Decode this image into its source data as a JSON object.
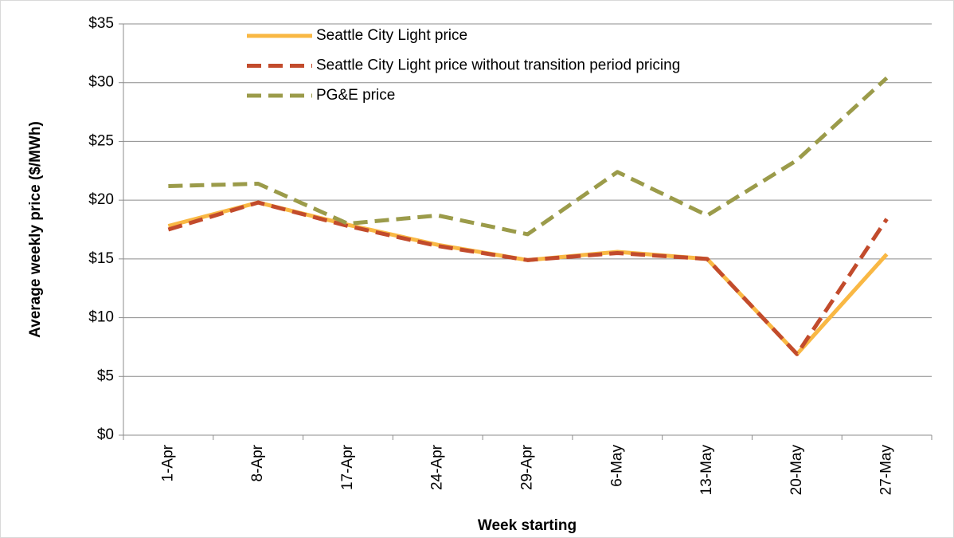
{
  "chart_data": {
    "type": "line",
    "x_label": "Week starting",
    "y_label": "Average weekly price ($/MWh)",
    "categories": [
      "1-Apr",
      "8-Apr",
      "17-Apr",
      "24-Apr",
      "29-Apr",
      "6-May",
      "13-May",
      "20-May",
      "27-May"
    ],
    "series": [
      {
        "name": "Seattle City Light price",
        "color": "#f9b844",
        "line_style": "solid",
        "values": [
          17.8,
          19.8,
          17.9,
          16.2,
          14.9,
          15.6,
          15.0,
          6.9,
          15.4
        ]
      },
      {
        "name": "Seattle City Light price without transition period pricing",
        "color": "#c24b2c",
        "line_style": "dashed",
        "values": [
          17.5,
          19.8,
          17.8,
          16.1,
          14.9,
          15.5,
          15.0,
          6.9,
          18.4
        ]
      },
      {
        "name": "PG&E price",
        "color": "#9b9b4a",
        "line_style": "dashed",
        "values": [
          21.2,
          21.4,
          18.0,
          18.7,
          17.1,
          22.4,
          18.7,
          23.4,
          30.4
        ]
      }
    ],
    "ylim": [
      0,
      35
    ],
    "yticks": [
      {
        "value": 0,
        "label": "$0"
      },
      {
        "value": 5,
        "label": "$5"
      },
      {
        "value": 10,
        "label": "$10"
      },
      {
        "value": 15,
        "label": "$15"
      },
      {
        "value": 20,
        "label": "$20"
      },
      {
        "value": 25,
        "label": "$25"
      },
      {
        "value": 30,
        "label": "$30"
      },
      {
        "value": 35,
        "label": "$35"
      }
    ],
    "grid": true,
    "legend": "top-left"
  }
}
